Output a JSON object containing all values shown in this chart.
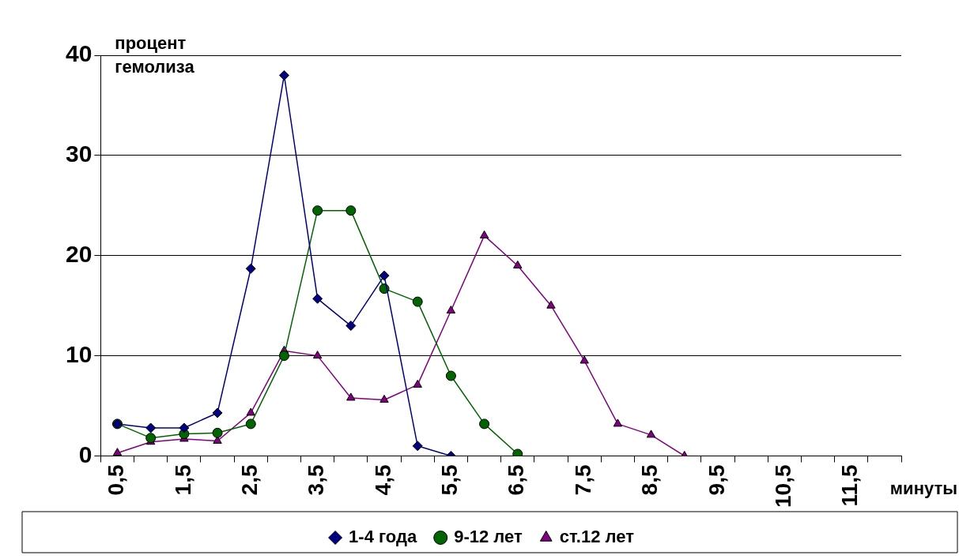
{
  "chart_data": {
    "type": "line",
    "ylabel": "процент гемолиза",
    "xlabel": "минуты",
    "categories": [
      "0,5",
      null,
      "1,5",
      null,
      "2,5",
      null,
      "3,5",
      null,
      "4,5",
      null,
      "5,5",
      null,
      "6,5",
      null,
      "7,5",
      null,
      "8,5",
      null,
      "9,5",
      null,
      "10,5",
      null,
      "11,5",
      null
    ],
    "series": [
      {
        "name": "1-4 года",
        "color": "#000080",
        "marker": "diamond",
        "values": [
          3.2,
          2.8,
          2.8,
          4.3,
          18.7,
          38,
          15.7,
          13,
          18,
          1,
          0,
          null,
          null,
          null,
          null,
          null,
          null,
          null,
          null,
          null,
          null,
          null,
          null,
          null
        ]
      },
      {
        "name": "9-12 лет",
        "color": "#006400",
        "marker": "circle",
        "values": [
          3.2,
          1.8,
          2.2,
          2.3,
          3.2,
          10,
          24.5,
          24.5,
          16.7,
          15.4,
          8,
          3.2,
          0.2,
          null,
          null,
          null,
          null,
          null,
          null,
          null,
          null,
          null,
          null,
          null
        ]
      },
      {
        "name": "ст.12 лет",
        "color": "#800080",
        "marker": "triangle",
        "values": [
          0.3,
          1.4,
          1.7,
          1.5,
          4.3,
          10.5,
          10,
          5.8,
          5.6,
          7.1,
          14.5,
          22,
          19,
          15,
          9.5,
          3.2,
          2.1,
          0,
          null,
          null,
          null,
          null,
          null,
          null
        ]
      }
    ],
    "ylim": [
      0,
      40
    ],
    "yticks": [
      0,
      10,
      20,
      30,
      40
    ],
    "grid": "y",
    "legend": "bottom"
  }
}
